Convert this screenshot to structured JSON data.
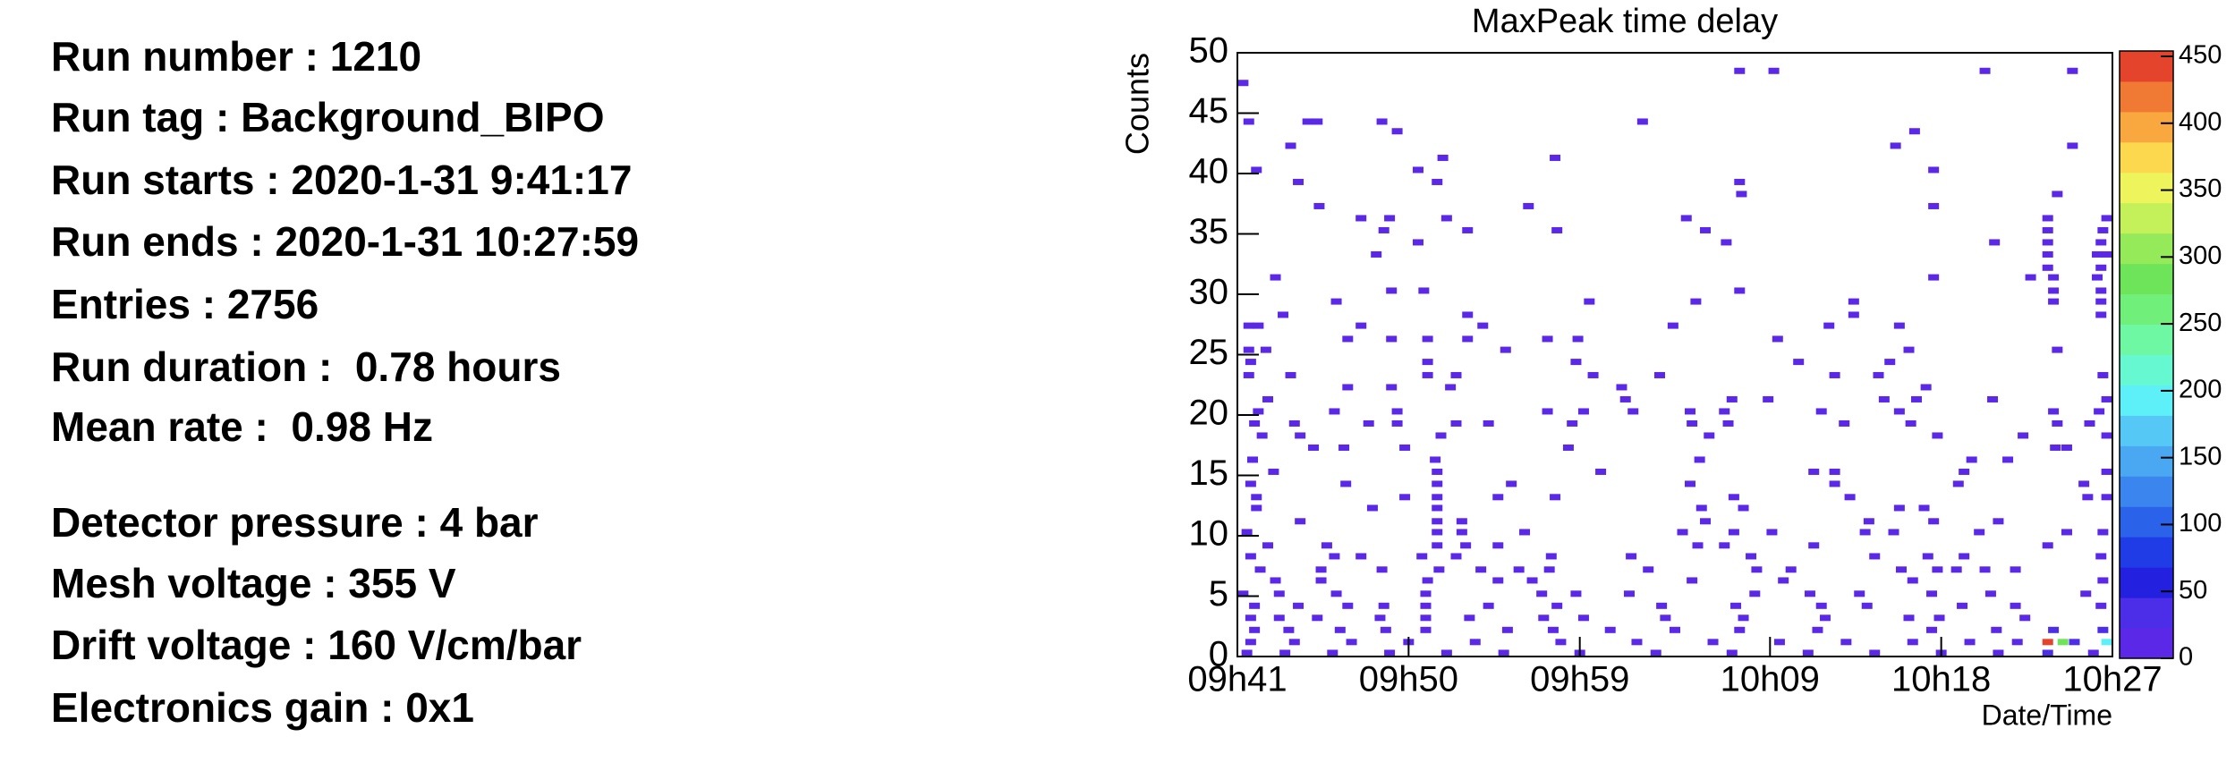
{
  "info": {
    "lines": [
      "Run number : 1210",
      "Run tag : Background_BIPO",
      "Run starts : 2020-1-31 9:41:17",
      "Run ends : 2020-1-31 10:27:59",
      "Entries : 2756",
      "Run duration :  0.78 hours",
      "Mean rate :  0.98 Hz",
      "Detector pressure : 4 bar",
      "Mesh voltage : 355 V",
      "Drift voltage : 160 V/cm/bar",
      "Electronics gain : 0x1"
    ]
  },
  "chart_data": {
    "type": "heatmap",
    "title": "MaxPeak time delay",
    "ylabel": "Counts",
    "xlabel": "Date/Time",
    "xlim": [
      581,
      627
    ],
    "xticks": [
      {
        "value": 581,
        "label": "09h41"
      },
      {
        "value": 590,
        "label": "09h50"
      },
      {
        "value": 599,
        "label": "09h59"
      },
      {
        "value": 609,
        "label": "10h09"
      },
      {
        "value": 618,
        "label": "10h18"
      },
      {
        "value": 627,
        "label": "10h27"
      }
    ],
    "ylim": [
      0,
      50
    ],
    "yticks": [
      0,
      5,
      10,
      15,
      20,
      25,
      30,
      35,
      40,
      45,
      50
    ],
    "zlim": [
      0,
      454
    ],
    "zticks": [
      0,
      50,
      100,
      150,
      200,
      250,
      300,
      350,
      400,
      450
    ],
    "palette": [
      "#5a28e6",
      "#4d2ee8",
      "#2420e0",
      "#1f3ce6",
      "#2a62ea",
      "#3b86ee",
      "#4aa8f2",
      "#56c8f6",
      "#5ef0f8",
      "#66f8d0",
      "#6ef8a4",
      "#70f07a",
      "#6ee45a",
      "#94ea58",
      "#c4f05a",
      "#eef45c",
      "#fcd84e",
      "#f8a83e",
      "#f07a34",
      "#e4442c"
    ],
    "cells": {
      "x": [
        607.4,
        609.2,
        620.3,
        624.9,
        581.3,
        581.6,
        584.7,
        585.2,
        588.6,
        602.3,
        589.4,
        616.6,
        583.8,
        615.6,
        624.9,
        591.8,
        597.7,
        582.0,
        590.5,
        617.6,
        584.2,
        591.5,
        607.4,
        607.5,
        624.1,
        585.3,
        596.3,
        617.6,
        587.5,
        589.0,
        592.0,
        604.6,
        623.6,
        626.7,
        588.7,
        593.1,
        597.8,
        605.6,
        623.6,
        626.5,
        590.5,
        606.7,
        620.8,
        623.6,
        626.4,
        588.3,
        623.6,
        626.2,
        626.7,
        623.6,
        626.4,
        583.0,
        617.6,
        622.7,
        623.9,
        626.2,
        589.1,
        590.8,
        607.4,
        623.9,
        626.4,
        586.2,
        599.5,
        605.1,
        613.4,
        623.9,
        626.4,
        583.4,
        593.1,
        613.4,
        626.4,
        581.6,
        582.1,
        587.5,
        593.9,
        603.9,
        612.1,
        615.8,
        586.8,
        589.1,
        591.0,
        593.1,
        597.3,
        598.9,
        609.4,
        581.6,
        582.5,
        595.1,
        616.3,
        624.1,
        581.7,
        591.0,
        598.8,
        610.5,
        615.3,
        581.6,
        583.8,
        591.0,
        592.5,
        599.7,
        603.2,
        612.4,
        614.7,
        626.5,
        586.8,
        589.1,
        592.2,
        601.2,
        617.2,
        582.6,
        601.4,
        607.0,
        608.9,
        615.0,
        616.7,
        620.7,
        626.7,
        582.1,
        586.1,
        589.4,
        597.3,
        599.2,
        601.8,
        604.8,
        606.6,
        611.7,
        615.8,
        623.9,
        626.3,
        581.9,
        584.0,
        587.9,
        589.4,
        592.5,
        594.2,
        598.6,
        604.9,
        606.8,
        612.9,
        616.4,
        624.1,
        625.8,
        582.3,
        584.3,
        591.7,
        605.8,
        617.8,
        622.3,
        626.7,
        585.0,
        586.6,
        589.8,
        598.4,
        624.0,
        624.6,
        581.8,
        591.4,
        605.3,
        619.6,
        621.5,
        582.9,
        591.5,
        600.1,
        611.3,
        612.4,
        619.2,
        626.7,
        581.7,
        586.7,
        591.5,
        595.4,
        604.8,
        612.4,
        618.9,
        625.5,
        582.0,
        589.8,
        591.5,
        594.7,
        597.7,
        607.1,
        613.2,
        625.7,
        626.7,
        582.0,
        588.1,
        591.5,
        605.4,
        607.6,
        615.8,
        617.1,
        584.3,
        591.5,
        592.8,
        605.6,
        614.2,
        617.6,
        621.0,
        581.5,
        591.5,
        592.8,
        596.1,
        604.4,
        607.1,
        609.1,
        614.0,
        615.5,
        620.0,
        624.6,
        626.5,
        582.6,
        585.7,
        591.5,
        593.0,
        594.7,
        605.2,
        606.6,
        611.3,
        623.6,
        581.7,
        586.1,
        587.5,
        590.7,
        592.5,
        597.5,
        601.7,
        608.0,
        614.5,
        617.3,
        619.2,
        626.4,
        582.2,
        585.4,
        588.6,
        591.6,
        593.8,
        595.8,
        597.4,
        602.6,
        608.3,
        610.1,
        615.9,
        617.8,
        618.8,
        620.3,
        621.9,
        583.0,
        585.4,
        591.0,
        594.7,
        596.5,
        604.9,
        609.7,
        616.5,
        626.5,
        581.3,
        583.2,
        586.2,
        590.9,
        597.0,
        598.8,
        601.6,
        608.2,
        611.1,
        613.7,
        617.5,
        620.6,
        625.6,
        581.9,
        584.2,
        586.8,
        588.7,
        590.9,
        594.2,
        597.8,
        603.3,
        607.2,
        611.7,
        614.1,
        619.1,
        621.9,
        626.4,
        581.7,
        583.2,
        585.2,
        588.5,
        590.9,
        593.2,
        597.1,
        599.2,
        603.5,
        607.6,
        611.9,
        616.3,
        617.9,
        622.4,
        581.9,
        583.7,
        586.4,
        588.8,
        590.9,
        595.2,
        597.6,
        600.6,
        604.0,
        607.4,
        611.5,
        617.5,
        620.9,
        623.9,
        626.5,
        581.7,
        584.0,
        587.0,
        590.0,
        593.5,
        598.0,
        602.0,
        606.0,
        609.5,
        613.0,
        616.5,
        619.5,
        622.0,
        623.6,
        624.4,
        625.0,
        626.7,
        581.5,
        583.5,
        586.0,
        589.0,
        592.0,
        595.0,
        599.0,
        603.0,
        607.0,
        611.0,
        614.5,
        618.0,
        621.0,
        623.6,
        626.0
      ],
      "y": [
        48.5,
        48.5,
        48.5,
        48.5,
        47.5,
        44.3,
        44.3,
        44.3,
        44.3,
        44.3,
        43.5,
        43.5,
        42.3,
        42.3,
        42.3,
        41.3,
        41.3,
        40.3,
        40.3,
        40.3,
        39.3,
        39.3,
        39.3,
        38.3,
        38.3,
        37.3,
        37.3,
        37.3,
        36.3,
        36.3,
        36.3,
        36.3,
        36.3,
        36.3,
        35.3,
        35.3,
        35.3,
        35.3,
        35.3,
        35.3,
        34.3,
        34.3,
        34.3,
        34.3,
        34.3,
        33.3,
        33.3,
        33.3,
        33.3,
        32.2,
        32.2,
        31.4,
        31.4,
        31.4,
        31.4,
        31.4,
        30.3,
        30.3,
        30.3,
        30.3,
        30.3,
        29.4,
        29.4,
        29.4,
        29.4,
        29.4,
        29.4,
        28.3,
        28.3,
        28.3,
        28.3,
        27.4,
        27.4,
        27.4,
        27.4,
        27.4,
        27.4,
        27.4,
        26.3,
        26.3,
        26.3,
        26.3,
        26.3,
        26.3,
        26.3,
        25.4,
        25.4,
        25.4,
        25.4,
        25.4,
        24.4,
        24.4,
        24.4,
        24.4,
        24.4,
        23.3,
        23.3,
        23.3,
        23.3,
        23.3,
        23.3,
        23.3,
        23.3,
        23.3,
        22.3,
        22.3,
        22.3,
        22.3,
        22.3,
        21.3,
        21.3,
        21.3,
        21.3,
        21.3,
        21.3,
        21.3,
        21.3,
        20.3,
        20.3,
        20.3,
        20.3,
        20.3,
        20.3,
        20.3,
        20.3,
        20.3,
        20.3,
        20.3,
        20.3,
        19.3,
        19.3,
        19.3,
        19.3,
        19.3,
        19.3,
        19.3,
        19.3,
        19.3,
        19.3,
        19.3,
        19.3,
        19.3,
        18.3,
        18.3,
        18.3,
        18.3,
        18.3,
        18.3,
        18.3,
        17.3,
        17.3,
        17.3,
        17.3,
        17.3,
        17.3,
        16.3,
        16.3,
        16.3,
        16.3,
        16.3,
        15.3,
        15.3,
        15.3,
        15.3,
        15.3,
        15.3,
        15.3,
        14.3,
        14.3,
        14.3,
        14.3,
        14.3,
        14.3,
        14.3,
        14.3,
        13.2,
        13.2,
        13.2,
        13.2,
        13.2,
        13.2,
        13.2,
        13.2,
        13.2,
        12.3,
        12.3,
        12.3,
        12.3,
        12.3,
        12.3,
        12.3,
        11.2,
        11.2,
        11.2,
        11.2,
        11.2,
        11.2,
        11.2,
        10.3,
        10.3,
        10.3,
        10.3,
        10.3,
        10.3,
        10.3,
        10.3,
        10.3,
        10.3,
        10.3,
        10.3,
        9.2,
        9.2,
        9.2,
        9.2,
        9.2,
        9.2,
        9.2,
        9.2,
        9.2,
        8.3,
        8.3,
        8.3,
        8.3,
        8.3,
        8.3,
        8.3,
        8.3,
        8.3,
        8.3,
        8.3,
        8.3,
        7.2,
        7.2,
        7.2,
        7.2,
        7.2,
        7.2,
        7.2,
        7.2,
        7.2,
        7.2,
        7.2,
        7.2,
        7.2,
        7.2,
        7.2,
        6.3,
        6.3,
        6.3,
        6.3,
        6.3,
        6.3,
        6.3,
        6.3,
        6.3,
        5.2,
        5.2,
        5.2,
        5.2,
        5.2,
        5.2,
        5.2,
        5.2,
        5.2,
        5.2,
        5.2,
        5.2,
        5.2,
        4.2,
        4.2,
        4.2,
        4.2,
        4.2,
        4.2,
        4.2,
        4.2,
        4.2,
        4.2,
        4.2,
        4.2,
        4.2,
        4.2,
        3.2,
        3.2,
        3.2,
        3.2,
        3.2,
        3.2,
        3.2,
        3.2,
        3.2,
        3.2,
        3.2,
        3.2,
        3.2,
        3.2,
        2.2,
        2.2,
        2.2,
        2.2,
        2.2,
        2.2,
        2.2,
        2.2,
        2.2,
        2.2,
        2.2,
        2.2,
        2.2,
        2.2,
        2.2,
        1.2,
        1.2,
        1.2,
        1.2,
        1.2,
        1.2,
        1.2,
        1.2,
        1.2,
        1.2,
        1.2,
        1.2,
        1.2,
        1.2,
        1.2,
        1.2,
        1.2,
        0.3,
        0.3,
        0.3,
        0.3,
        0.3,
        0.3,
        0.3,
        0.3,
        0.3,
        0.3,
        0.3,
        0.3,
        0.3,
        0.3,
        0.3
      ],
      "values": [
        1,
        1,
        1,
        1,
        1,
        1,
        1,
        1,
        1,
        1,
        1,
        1,
        1,
        1,
        1,
        1,
        1,
        1,
        1,
        1,
        1,
        1,
        1,
        1,
        1,
        1,
        1,
        1,
        1,
        1,
        1,
        1,
        1,
        1,
        1,
        1,
        1,
        1,
        1,
        1,
        1,
        1,
        1,
        1,
        1,
        1,
        1,
        1,
        1,
        1,
        1,
        1,
        1,
        1,
        1,
        1,
        1,
        1,
        1,
        1,
        1,
        1,
        1,
        1,
        1,
        1,
        1,
        1,
        1,
        1,
        1,
        1,
        1,
        1,
        1,
        1,
        1,
        1,
        1,
        1,
        1,
        1,
        1,
        1,
        1,
        1,
        1,
        1,
        1,
        1,
        1,
        1,
        1,
        1,
        1,
        1,
        1,
        1,
        1,
        1,
        1,
        1,
        1,
        1,
        1,
        1,
        1,
        1,
        1,
        1,
        1,
        1,
        1,
        1,
        1,
        1,
        1,
        1,
        1,
        1,
        1,
        1,
        1,
        1,
        1,
        1,
        1,
        1,
        1,
        1,
        1,
        1,
        1,
        1,
        1,
        1,
        1,
        1,
        1,
        1,
        1,
        1,
        1,
        1,
        1,
        1,
        1,
        1,
        1,
        1,
        1,
        1,
        1,
        1,
        1,
        1,
        1,
        1,
        1,
        1,
        1,
        1,
        1,
        1,
        1,
        1,
        1,
        1,
        1,
        1,
        1,
        1,
        1,
        1,
        1,
        1,
        1,
        1,
        1,
        1,
        1,
        1,
        1,
        1,
        1,
        1,
        1,
        1,
        1,
        1,
        1,
        1,
        1,
        1,
        1,
        1,
        1,
        1,
        1,
        1,
        1,
        1,
        1,
        1,
        1,
        1,
        1,
        1,
        1,
        1,
        1,
        1,
        1,
        1,
        1,
        1,
        1,
        1,
        1,
        1,
        1,
        1,
        1,
        1,
        1,
        1,
        1,
        1,
        1,
        1,
        1,
        1,
        1,
        1,
        1,
        1,
        1,
        1,
        1,
        1,
        1,
        1,
        1,
        1,
        1,
        1,
        1,
        1,
        1,
        1,
        1,
        1,
        1,
        1,
        1,
        1,
        1,
        1,
        1,
        1,
        1,
        1,
        1,
        1,
        1,
        1,
        1,
        1,
        1,
        1,
        1,
        1,
        1,
        1,
        1,
        1,
        1,
        1,
        1,
        1,
        1,
        1,
        1,
        1,
        1,
        1,
        1,
        1,
        1,
        1,
        1,
        1,
        1,
        1,
        1,
        1,
        1,
        1,
        1,
        1,
        1,
        1,
        1,
        1,
        1,
        1,
        1,
        1,
        1,
        30,
        30,
        1,
        1,
        1,
        1,
        1,
        1,
        1,
        1,
        1,
        1,
        1,
        1,
        1,
        440,
        280,
        40,
        200,
        1,
        1,
        1,
        1,
        1,
        1,
        1,
        1,
        1,
        1,
        1,
        1,
        1,
        30,
        20
      ]
    }
  }
}
